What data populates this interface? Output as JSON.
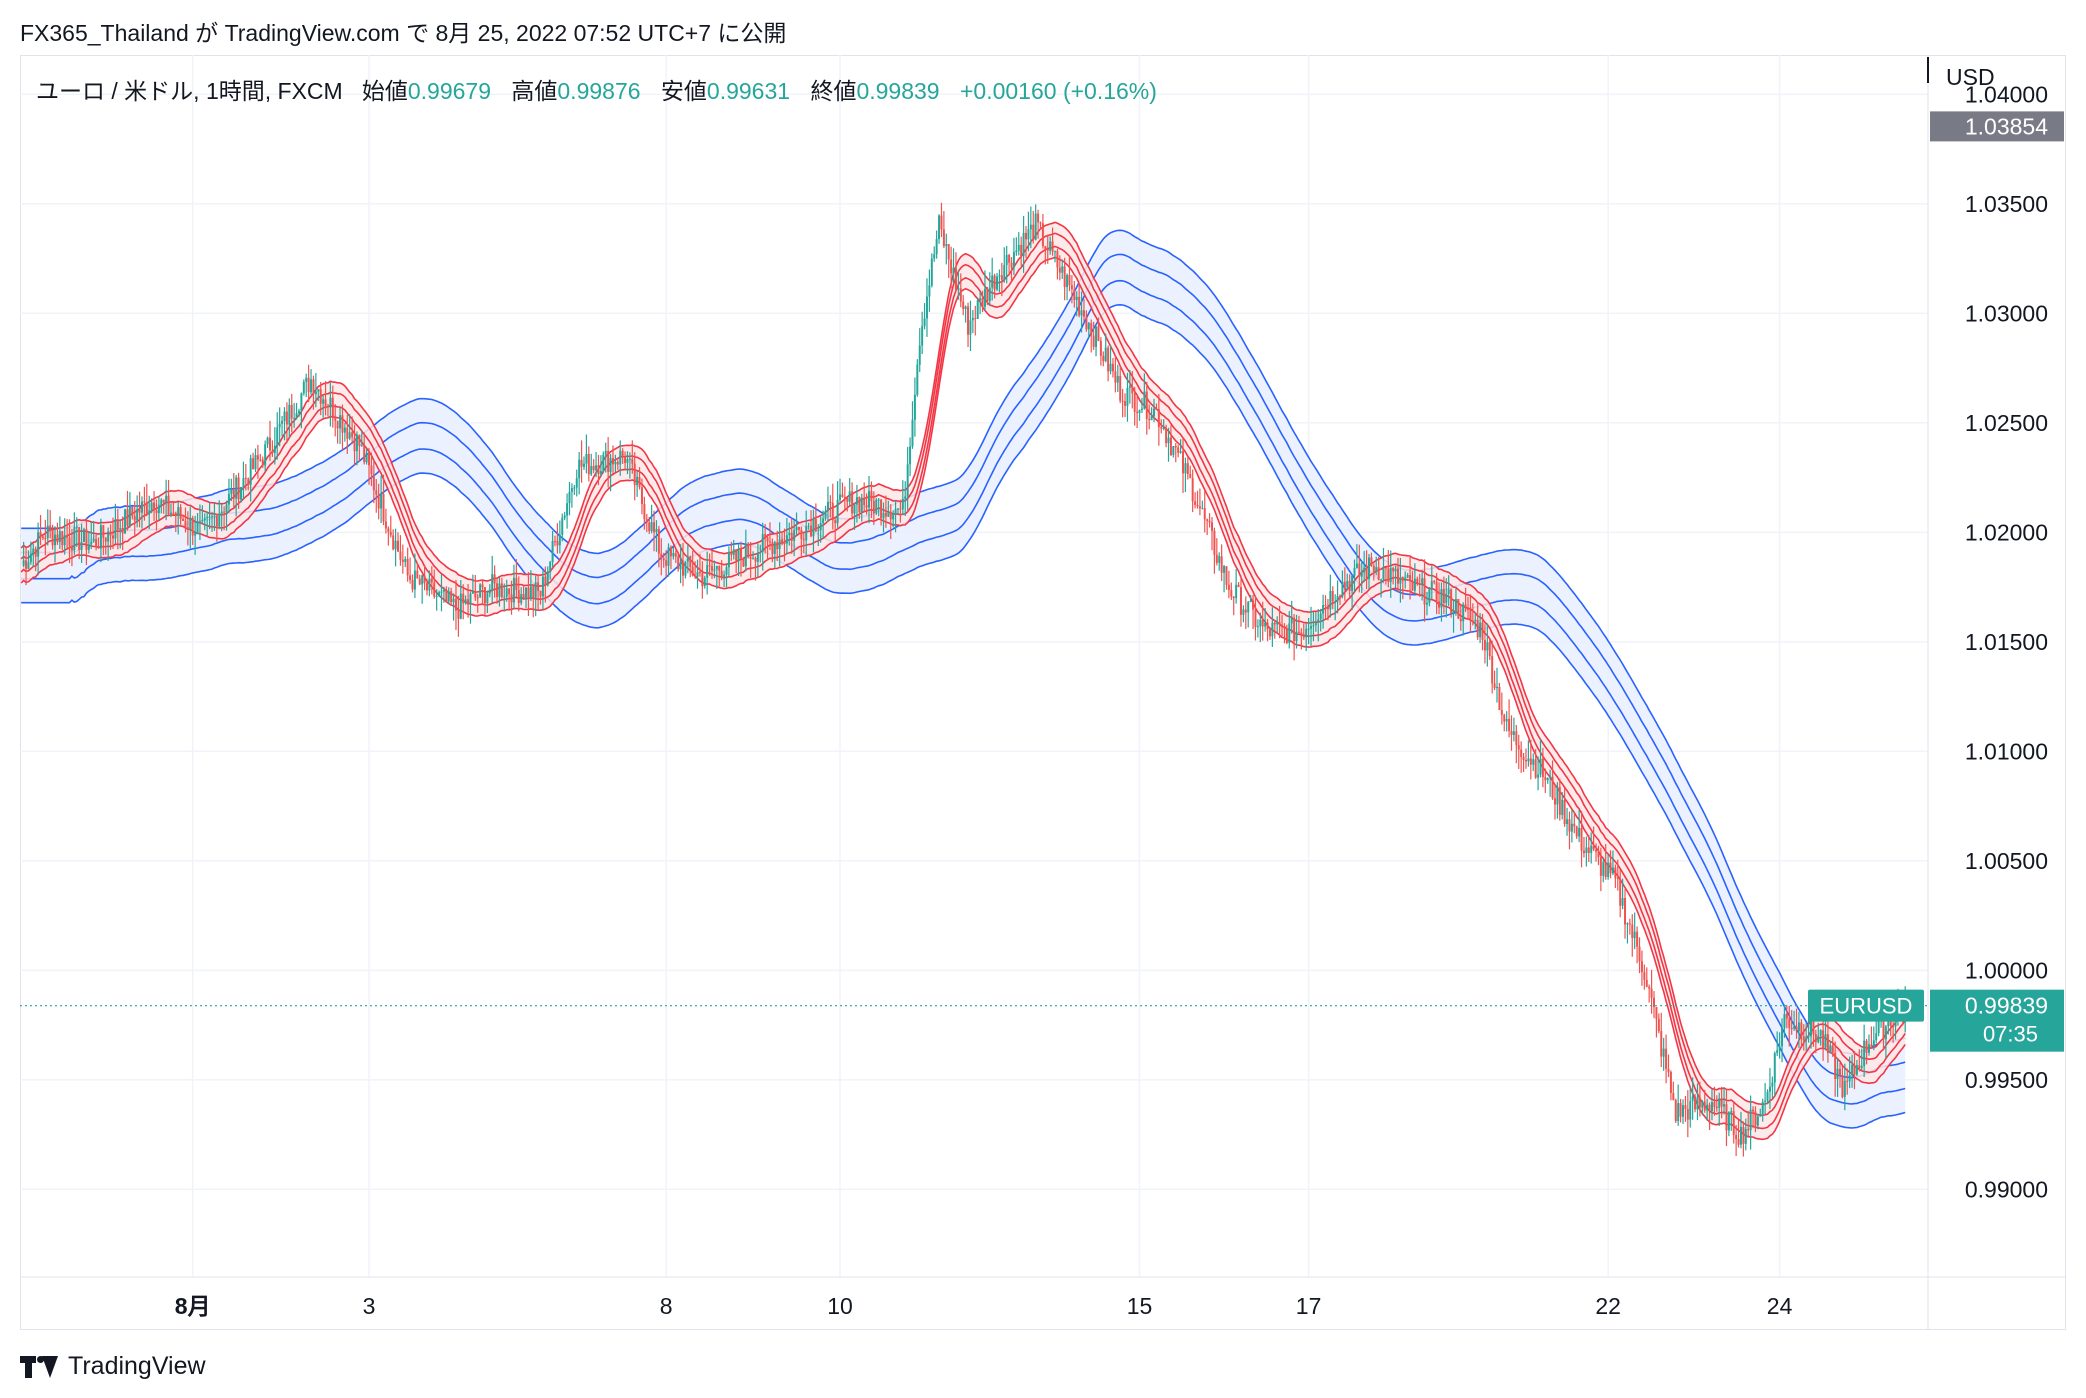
{
  "header": {
    "publish_line": "FX365_Thailand が TradingView.com で 8月 25, 2022 07:52 UTC+7 に公開"
  },
  "legend": {
    "symbol": "ユーロ / 米ドル, 1時間, FXCM",
    "open_label": "始値",
    "open": "0.99679",
    "high_label": "高値",
    "high": "0.99876",
    "low_label": "安値",
    "low": "0.99631",
    "close_label": "終値",
    "close": "0.99839",
    "change": "+0.00160 (+0.16%)"
  },
  "footer": {
    "brand": "TradingView"
  },
  "colors": {
    "up": "#26a69a",
    "down": "#ef5350",
    "red_band": "#f23645",
    "red_fill": "#fde6e7",
    "blue_band": "#2962ff",
    "blue_fill": "#e8eefe",
    "grid": "#f0f3fa",
    "text": "#131722"
  },
  "chart_data": {
    "type": "candlestick",
    "currency": "USD",
    "ylim": [
      0.986,
      1.0418
    ],
    "y_ticks": [
      "1.04000",
      "1.03500",
      "1.03000",
      "1.02500",
      "1.02000",
      "1.01500",
      "1.01000",
      "1.00500",
      "1.00000",
      "0.99500",
      "0.99000"
    ],
    "x_ticks": [
      {
        "label": "8月",
        "bold": true,
        "bar": 71
      },
      {
        "label": "3",
        "bar": 144
      },
      {
        "label": "8",
        "bar": 267
      },
      {
        "label": "10",
        "bar": 339
      },
      {
        "label": "15",
        "bar": 463
      },
      {
        "label": "17",
        "bar": 533
      },
      {
        "label": "22",
        "bar": 657
      },
      {
        "label": "24",
        "bar": 728
      }
    ],
    "total_bars": 780,
    "last_price": {
      "value": 0.99839,
      "label": "EURUSD",
      "price_text": "0.99839",
      "countdown": "07:35"
    },
    "top_price": {
      "value": 1.03854,
      "price_text": "1.03854"
    },
    "close_anchors": [
      [
        0,
        1.0185
      ],
      [
        10,
        1.02
      ],
      [
        30,
        1.0195
      ],
      [
        55,
        1.0215
      ],
      [
        75,
        1.02
      ],
      [
        100,
        1.0235
      ],
      [
        120,
        1.027
      ],
      [
        140,
        1.024
      ],
      [
        160,
        1.018
      ],
      [
        180,
        1.0165
      ],
      [
        195,
        1.0175
      ],
      [
        215,
        1.0172
      ],
      [
        230,
        1.023
      ],
      [
        250,
        1.0235
      ],
      [
        265,
        1.019
      ],
      [
        282,
        1.018
      ],
      [
        300,
        1.019
      ],
      [
        320,
        1.02
      ],
      [
        345,
        1.0215
      ],
      [
        365,
        1.021
      ],
      [
        372,
        1.029
      ],
      [
        380,
        1.034
      ],
      [
        392,
        1.0295
      ],
      [
        405,
        1.032
      ],
      [
        420,
        1.034
      ],
      [
        440,
        1.03
      ],
      [
        455,
        1.0265
      ],
      [
        470,
        1.0255
      ],
      [
        485,
        1.022
      ],
      [
        500,
        1.0175
      ],
      [
        515,
        1.0155
      ],
      [
        530,
        1.0155
      ],
      [
        545,
        1.0175
      ],
      [
        560,
        1.0185
      ],
      [
        575,
        1.0175
      ],
      [
        590,
        1.017
      ],
      [
        605,
        1.0155
      ],
      [
        615,
        1.011
      ],
      [
        630,
        1.009
      ],
      [
        645,
        1.006
      ],
      [
        660,
        1.004
      ],
      [
        672,
        1.0
      ],
      [
        685,
        0.9935
      ],
      [
        700,
        0.994
      ],
      [
        712,
        0.9925
      ],
      [
        722,
        0.994
      ],
      [
        730,
        0.9978
      ],
      [
        745,
        0.997
      ],
      [
        755,
        0.9945
      ],
      [
        765,
        0.9968
      ],
      [
        780,
        0.9984
      ]
    ]
  }
}
